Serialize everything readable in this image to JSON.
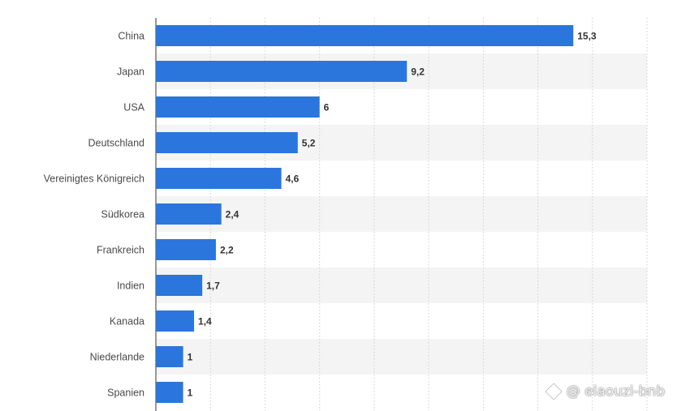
{
  "chart_data": {
    "type": "bar",
    "orientation": "horizontal",
    "categories": [
      "China",
      "Japan",
      "USA",
      "Deutschland",
      "Vereinigtes Königreich",
      "Südkorea",
      "Frankreich",
      "Indien",
      "Kanada",
      "Niederlande",
      "Spanien"
    ],
    "values": [
      15.3,
      9.2,
      6,
      5.2,
      4.6,
      2.4,
      2.2,
      1.7,
      1.4,
      1,
      1
    ],
    "value_labels": [
      "15,3",
      "9,2",
      "6",
      "5,2",
      "4,6",
      "2,4",
      "2,2",
      "1,7",
      "1,4",
      "1",
      "1"
    ],
    "xlim": [
      0,
      18
    ],
    "grid": true,
    "bar_color": "#2a76dd",
    "stripe_color": "#f4f4f4"
  },
  "watermark": {
    "text": "@ elaouzi-bnb",
    "icon": "diamond-logo-icon"
  }
}
